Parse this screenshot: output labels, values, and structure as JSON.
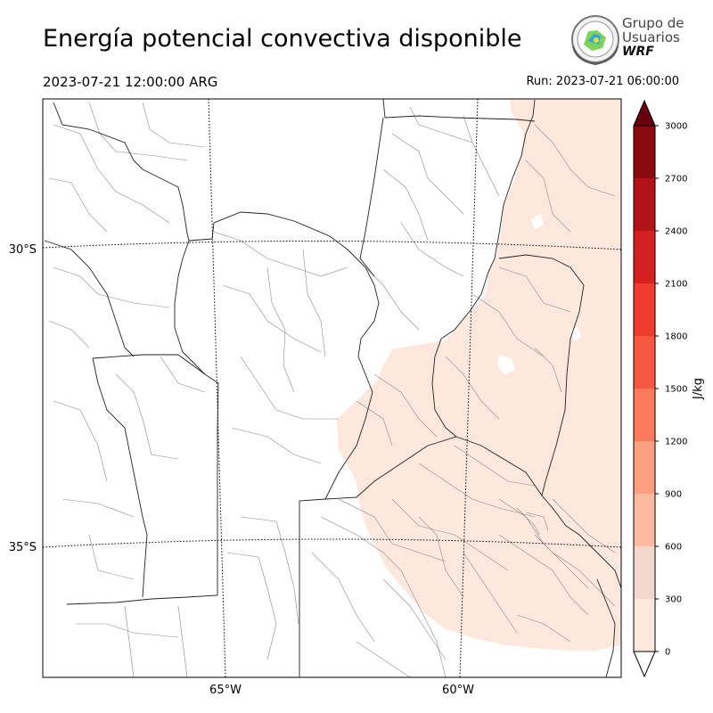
{
  "header": {
    "title": "Energía potencial convectiva disponible",
    "valid_time": "2023-07-21 12:00:00 ARG",
    "run_time": "Run: 2023-07-21 06:00:00"
  },
  "logo": {
    "line1": "Grupo de",
    "line2": "Usuarios",
    "line3": "WRF"
  },
  "map": {
    "lat_labels": [
      "30°S",
      "35°S"
    ],
    "lon_labels": [
      "65°W",
      "60°W"
    ]
  },
  "colorbar": {
    "unit": "J/kg",
    "ticks": [
      "0",
      "300",
      "600",
      "900",
      "1200",
      "1500",
      "1800",
      "2100",
      "2400",
      "2700",
      "3000"
    ],
    "colors": [
      "#fee8de",
      "#f5d8cd",
      "#fcbba1",
      "#fc9e80",
      "#fb7b5c",
      "#f7573f",
      "#ef3b2c",
      "#d42020",
      "#b31218",
      "#8b0a10",
      "#67000d"
    ]
  }
}
